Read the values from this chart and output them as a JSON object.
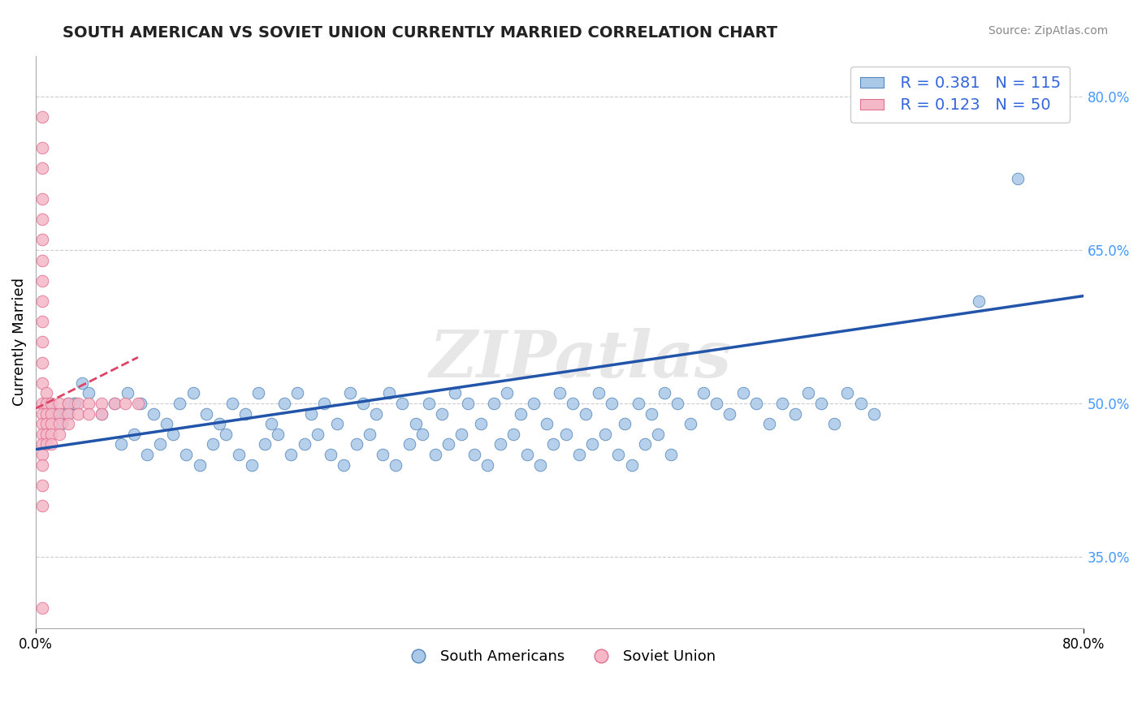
{
  "title": "SOUTH AMERICAN VS SOVIET UNION CURRENTLY MARRIED CORRELATION CHART",
  "source": "Source: ZipAtlas.com",
  "ylabel": "Currently Married",
  "x_min": 0.0,
  "x_max": 0.8,
  "y_min": 0.28,
  "y_max": 0.84,
  "y_ticks": [
    0.35,
    0.5,
    0.65,
    0.8
  ],
  "y_tick_labels": [
    "35.0%",
    "50.0%",
    "65.0%",
    "80.0%"
  ],
  "blue_color": "#aac8e8",
  "blue_edge": "#5588bb",
  "pink_color": "#f5b8c8",
  "pink_edge": "#e07090",
  "blue_line_color": "#2255aa",
  "pink_line_color": "#dd4466",
  "grid_color": "#cccccc",
  "watermark": "ZIPatlas",
  "legend_R_blue": "R = 0.381",
  "legend_N_blue": "N = 115",
  "legend_R_pink": "R = 0.123",
  "legend_N_pink": "N = 50",
  "blue_trendline_x": [
    0.0,
    0.8
  ],
  "blue_trendline_y": [
    0.455,
    0.605
  ],
  "pink_trendline_x": [
    0.0,
    0.078
  ],
  "pink_trendline_y": [
    0.495,
    0.545
  ],
  "blue_scatter_x": [
    0.02,
    0.03,
    0.025,
    0.015,
    0.01,
    0.04,
    0.035,
    0.02,
    0.03,
    0.025,
    0.05,
    0.06,
    0.07,
    0.08,
    0.09,
    0.1,
    0.11,
    0.12,
    0.13,
    0.14,
    0.15,
    0.16,
    0.17,
    0.18,
    0.19,
    0.2,
    0.21,
    0.22,
    0.23,
    0.24,
    0.25,
    0.26,
    0.27,
    0.28,
    0.29,
    0.3,
    0.31,
    0.32,
    0.33,
    0.34,
    0.35,
    0.36,
    0.37,
    0.38,
    0.39,
    0.4,
    0.41,
    0.42,
    0.43,
    0.44,
    0.45,
    0.46,
    0.47,
    0.48,
    0.49,
    0.5,
    0.51,
    0.52,
    0.53,
    0.54,
    0.55,
    0.56,
    0.57,
    0.58,
    0.59,
    0.6,
    0.61,
    0.62,
    0.63,
    0.64,
    0.065,
    0.075,
    0.085,
    0.095,
    0.105,
    0.115,
    0.125,
    0.135,
    0.145,
    0.155,
    0.165,
    0.175,
    0.185,
    0.195,
    0.205,
    0.215,
    0.225,
    0.235,
    0.245,
    0.255,
    0.265,
    0.275,
    0.285,
    0.295,
    0.305,
    0.315,
    0.325,
    0.335,
    0.345,
    0.355,
    0.365,
    0.375,
    0.385,
    0.395,
    0.405,
    0.415,
    0.425,
    0.435,
    0.445,
    0.455,
    0.465,
    0.475,
    0.485,
    0.72,
    0.75
  ],
  "blue_scatter_y": [
    0.49,
    0.5,
    0.5,
    0.49,
    0.5,
    0.51,
    0.52,
    0.48,
    0.5,
    0.49,
    0.49,
    0.5,
    0.51,
    0.5,
    0.49,
    0.48,
    0.5,
    0.51,
    0.49,
    0.48,
    0.5,
    0.49,
    0.51,
    0.48,
    0.5,
    0.51,
    0.49,
    0.5,
    0.48,
    0.51,
    0.5,
    0.49,
    0.51,
    0.5,
    0.48,
    0.5,
    0.49,
    0.51,
    0.5,
    0.48,
    0.5,
    0.51,
    0.49,
    0.5,
    0.48,
    0.51,
    0.5,
    0.49,
    0.51,
    0.5,
    0.48,
    0.5,
    0.49,
    0.51,
    0.5,
    0.48,
    0.51,
    0.5,
    0.49,
    0.51,
    0.5,
    0.48,
    0.5,
    0.49,
    0.51,
    0.5,
    0.48,
    0.51,
    0.5,
    0.49,
    0.46,
    0.47,
    0.45,
    0.46,
    0.47,
    0.45,
    0.44,
    0.46,
    0.47,
    0.45,
    0.44,
    0.46,
    0.47,
    0.45,
    0.46,
    0.47,
    0.45,
    0.44,
    0.46,
    0.47,
    0.45,
    0.44,
    0.46,
    0.47,
    0.45,
    0.46,
    0.47,
    0.45,
    0.44,
    0.46,
    0.47,
    0.45,
    0.44,
    0.46,
    0.47,
    0.45,
    0.46,
    0.47,
    0.45,
    0.44,
    0.46,
    0.47,
    0.45,
    0.6,
    0.72
  ],
  "pink_scatter_x": [
    0.005,
    0.005,
    0.005,
    0.005,
    0.005,
    0.005,
    0.005,
    0.005,
    0.005,
    0.005,
    0.005,
    0.005,
    0.005,
    0.005,
    0.005,
    0.005,
    0.005,
    0.005,
    0.005,
    0.005,
    0.008,
    0.008,
    0.008,
    0.008,
    0.008,
    0.008,
    0.012,
    0.012,
    0.012,
    0.012,
    0.012,
    0.018,
    0.018,
    0.018,
    0.018,
    0.025,
    0.025,
    0.025,
    0.032,
    0.032,
    0.04,
    0.04,
    0.05,
    0.05,
    0.06,
    0.068,
    0.078,
    0.005,
    0.005,
    0.005
  ],
  "pink_scatter_y": [
    0.78,
    0.75,
    0.73,
    0.7,
    0.68,
    0.66,
    0.64,
    0.62,
    0.6,
    0.58,
    0.56,
    0.54,
    0.52,
    0.5,
    0.49,
    0.48,
    0.47,
    0.46,
    0.45,
    0.44,
    0.51,
    0.5,
    0.49,
    0.48,
    0.47,
    0.46,
    0.5,
    0.49,
    0.48,
    0.47,
    0.46,
    0.5,
    0.49,
    0.48,
    0.47,
    0.5,
    0.49,
    0.48,
    0.5,
    0.49,
    0.5,
    0.49,
    0.5,
    0.49,
    0.5,
    0.5,
    0.5,
    0.42,
    0.4,
    0.3
  ]
}
